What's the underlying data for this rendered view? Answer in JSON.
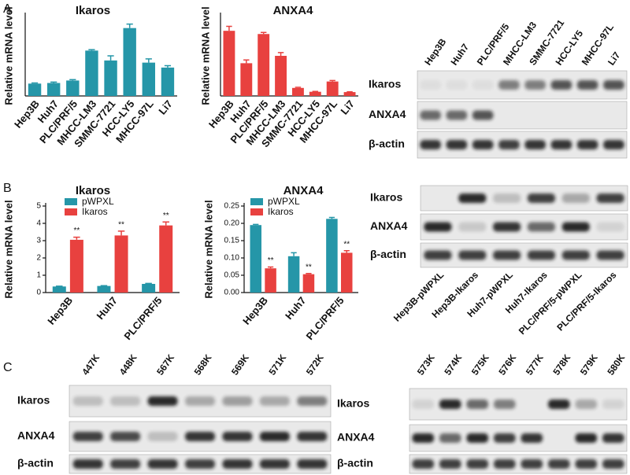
{
  "panels": [
    "A",
    "B",
    "C"
  ],
  "chart_data": [
    {
      "type": "bar",
      "title": "Ikaros",
      "ylabel": "Relative mRNA level",
      "categories": [
        "Hep3B",
        "Huh7",
        "PLC/PRF/5",
        "MHCC-LM3",
        "SMMC-7721",
        "HCC-LY5",
        "MHCC-97L",
        "Li7"
      ],
      "values": [
        0.4,
        0.42,
        0.5,
        1.47,
        1.15,
        2.2,
        1.08,
        0.92
      ],
      "errors": [
        0.02,
        0.03,
        0.03,
        0.03,
        0.15,
        0.13,
        0.12,
        0.06
      ],
      "color": "#2596a8",
      "ylim": [
        0,
        2.6
      ]
    },
    {
      "type": "bar",
      "title": "ANXA4",
      "ylabel": "Relative mRNA level",
      "categories": [
        "Hep3B",
        "Huh7",
        "PLC/PRF/5",
        "MHCC-LM3",
        "SMMC-7721",
        "HCC-LY5",
        "MHCC-97L",
        "Li7"
      ],
      "values": [
        0.203,
        0.102,
        0.193,
        0.125,
        0.025,
        0.013,
        0.045,
        0.012
      ],
      "errors": [
        0.014,
        0.01,
        0.005,
        0.01,
        0.002,
        0.001,
        0.003,
        0.001
      ],
      "color": "#e8413f",
      "ylim": [
        0,
        0.25
      ]
    },
    {
      "type": "bar",
      "title": "Ikaros",
      "ylabel": "Relative mRNA level",
      "categories": [
        "Hep3B",
        "Huh7",
        "PLC/PRF/5"
      ],
      "series": [
        {
          "name": "pWPXL",
          "color": "#2596a8",
          "values": [
            0.35,
            0.38,
            0.5
          ],
          "errors": [
            0.02,
            0.02,
            0.03
          ]
        },
        {
          "name": "Ikaros",
          "color": "#e8413f",
          "values": [
            3.05,
            3.3,
            3.88
          ],
          "errors": [
            0.15,
            0.25,
            0.2
          ],
          "annotations": [
            "**",
            "**",
            "**"
          ]
        }
      ],
      "ylim": [
        0,
        5
      ],
      "yticks": [
        0,
        1,
        2,
        3,
        4,
        5
      ]
    },
    {
      "type": "bar",
      "title": "ANXA4",
      "ylabel": "Relative mRNA level",
      "categories": [
        "Hep3B",
        "Huh7",
        "PLC/PRF/5"
      ],
      "series": [
        {
          "name": "pWPXL",
          "color": "#2596a8",
          "values": [
            0.195,
            0.105,
            0.213
          ],
          "errors": [
            0.002,
            0.01,
            0.004
          ]
        },
        {
          "name": "Ikaros",
          "color": "#e8413f",
          "values": [
            0.07,
            0.053,
            0.115
          ],
          "errors": [
            0.004,
            0.002,
            0.006
          ],
          "annotations": [
            "**",
            "**",
            "**"
          ]
        }
      ],
      "ylim": [
        0,
        0.25
      ],
      "yticks": [
        {
          "value": 0,
          "label": "0.00"
        },
        0.05,
        {
          "value": 0.1,
          "label": "0.10"
        },
        0.15,
        {
          "value": 0.2,
          "label": "0.20"
        },
        0.25
      ]
    }
  ],
  "blots": [
    {
      "lanes": [
        "Hep3B",
        "Huh7",
        "PLC/PRF/5",
        "MHCC-LM3",
        "SMMC-7721",
        "HCC-LY5",
        "MHCC-97L",
        "Li7"
      ],
      "rows": [
        "Ikaros",
        "ANXA4",
        "β-actin"
      ]
    },
    {
      "lanes": [
        "Hep3B-pWPXL",
        "Hep3B-Ikaros",
        "Huh7-pWPXL",
        "Huh7-Ikaros",
        "PLC/PRF/5-pWPXL",
        "PLC/PRF/5-Ikaros"
      ],
      "rows": [
        "Ikaros",
        "ANXA4",
        "β-actin"
      ]
    },
    {
      "lanes": [
        "447K",
        "448K",
        "567K",
        "568K",
        "569K",
        "571K",
        "572K"
      ],
      "rows": [
        "Ikaros",
        "ANXA4",
        "β-actin"
      ]
    },
    {
      "lanes": [
        "573K",
        "574K",
        "575K",
        "576K",
        "577K",
        "578K",
        "579K",
        "580K"
      ],
      "rows": [
        "Ikaros",
        "ANXA4",
        "β-actin"
      ]
    }
  ]
}
